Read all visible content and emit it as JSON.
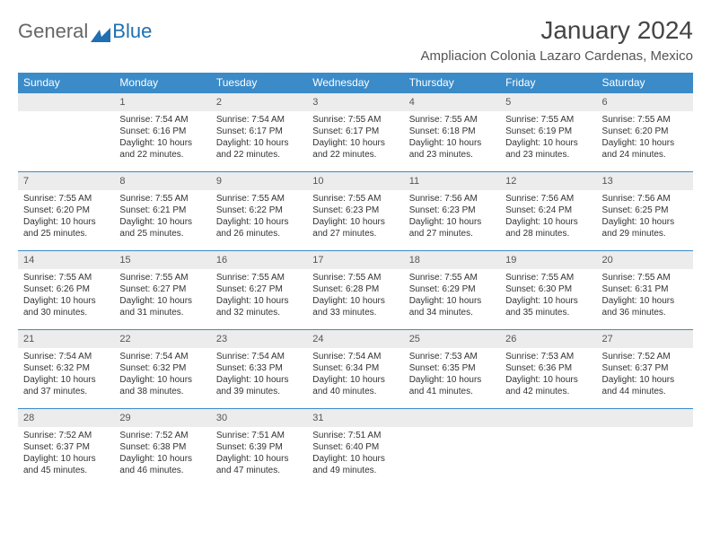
{
  "brand": {
    "part1": "General",
    "part2": "Blue"
  },
  "title": "January 2024",
  "location": "Ampliacion Colonia Lazaro Cardenas, Mexico",
  "colors": {
    "header_bg": "#3b8bc9",
    "header_fg": "#ffffff",
    "daynum_bg": "#ececec",
    "accent_line": "#3b8bc9",
    "logo_blue": "#1f6fb2",
    "text": "#333333"
  },
  "weekdays": [
    "Sunday",
    "Monday",
    "Tuesday",
    "Wednesday",
    "Thursday",
    "Friday",
    "Saturday"
  ],
  "start_weekday": 1,
  "days": [
    {
      "n": 1,
      "sunrise": "7:54 AM",
      "sunset": "6:16 PM",
      "daylight": "10 hours and 22 minutes."
    },
    {
      "n": 2,
      "sunrise": "7:54 AM",
      "sunset": "6:17 PM",
      "daylight": "10 hours and 22 minutes."
    },
    {
      "n": 3,
      "sunrise": "7:55 AM",
      "sunset": "6:17 PM",
      "daylight": "10 hours and 22 minutes."
    },
    {
      "n": 4,
      "sunrise": "7:55 AM",
      "sunset": "6:18 PM",
      "daylight": "10 hours and 23 minutes."
    },
    {
      "n": 5,
      "sunrise": "7:55 AM",
      "sunset": "6:19 PM",
      "daylight": "10 hours and 23 minutes."
    },
    {
      "n": 6,
      "sunrise": "7:55 AM",
      "sunset": "6:20 PM",
      "daylight": "10 hours and 24 minutes."
    },
    {
      "n": 7,
      "sunrise": "7:55 AM",
      "sunset": "6:20 PM",
      "daylight": "10 hours and 25 minutes."
    },
    {
      "n": 8,
      "sunrise": "7:55 AM",
      "sunset": "6:21 PM",
      "daylight": "10 hours and 25 minutes."
    },
    {
      "n": 9,
      "sunrise": "7:55 AM",
      "sunset": "6:22 PM",
      "daylight": "10 hours and 26 minutes."
    },
    {
      "n": 10,
      "sunrise": "7:55 AM",
      "sunset": "6:23 PM",
      "daylight": "10 hours and 27 minutes."
    },
    {
      "n": 11,
      "sunrise": "7:56 AM",
      "sunset": "6:23 PM",
      "daylight": "10 hours and 27 minutes."
    },
    {
      "n": 12,
      "sunrise": "7:56 AM",
      "sunset": "6:24 PM",
      "daylight": "10 hours and 28 minutes."
    },
    {
      "n": 13,
      "sunrise": "7:56 AM",
      "sunset": "6:25 PM",
      "daylight": "10 hours and 29 minutes."
    },
    {
      "n": 14,
      "sunrise": "7:55 AM",
      "sunset": "6:26 PM",
      "daylight": "10 hours and 30 minutes."
    },
    {
      "n": 15,
      "sunrise": "7:55 AM",
      "sunset": "6:27 PM",
      "daylight": "10 hours and 31 minutes."
    },
    {
      "n": 16,
      "sunrise": "7:55 AM",
      "sunset": "6:27 PM",
      "daylight": "10 hours and 32 minutes."
    },
    {
      "n": 17,
      "sunrise": "7:55 AM",
      "sunset": "6:28 PM",
      "daylight": "10 hours and 33 minutes."
    },
    {
      "n": 18,
      "sunrise": "7:55 AM",
      "sunset": "6:29 PM",
      "daylight": "10 hours and 34 minutes."
    },
    {
      "n": 19,
      "sunrise": "7:55 AM",
      "sunset": "6:30 PM",
      "daylight": "10 hours and 35 minutes."
    },
    {
      "n": 20,
      "sunrise": "7:55 AM",
      "sunset": "6:31 PM",
      "daylight": "10 hours and 36 minutes."
    },
    {
      "n": 21,
      "sunrise": "7:54 AM",
      "sunset": "6:32 PM",
      "daylight": "10 hours and 37 minutes."
    },
    {
      "n": 22,
      "sunrise": "7:54 AM",
      "sunset": "6:32 PM",
      "daylight": "10 hours and 38 minutes."
    },
    {
      "n": 23,
      "sunrise": "7:54 AM",
      "sunset": "6:33 PM",
      "daylight": "10 hours and 39 minutes."
    },
    {
      "n": 24,
      "sunrise": "7:54 AM",
      "sunset": "6:34 PM",
      "daylight": "10 hours and 40 minutes."
    },
    {
      "n": 25,
      "sunrise": "7:53 AM",
      "sunset": "6:35 PM",
      "daylight": "10 hours and 41 minutes."
    },
    {
      "n": 26,
      "sunrise": "7:53 AM",
      "sunset": "6:36 PM",
      "daylight": "10 hours and 42 minutes."
    },
    {
      "n": 27,
      "sunrise": "7:52 AM",
      "sunset": "6:37 PM",
      "daylight": "10 hours and 44 minutes."
    },
    {
      "n": 28,
      "sunrise": "7:52 AM",
      "sunset": "6:37 PM",
      "daylight": "10 hours and 45 minutes."
    },
    {
      "n": 29,
      "sunrise": "7:52 AM",
      "sunset": "6:38 PM",
      "daylight": "10 hours and 46 minutes."
    },
    {
      "n": 30,
      "sunrise": "7:51 AM",
      "sunset": "6:39 PM",
      "daylight": "10 hours and 47 minutes."
    },
    {
      "n": 31,
      "sunrise": "7:51 AM",
      "sunset": "6:40 PM",
      "daylight": "10 hours and 49 minutes."
    }
  ],
  "labels": {
    "sunrise": "Sunrise:",
    "sunset": "Sunset:",
    "daylight": "Daylight:"
  }
}
